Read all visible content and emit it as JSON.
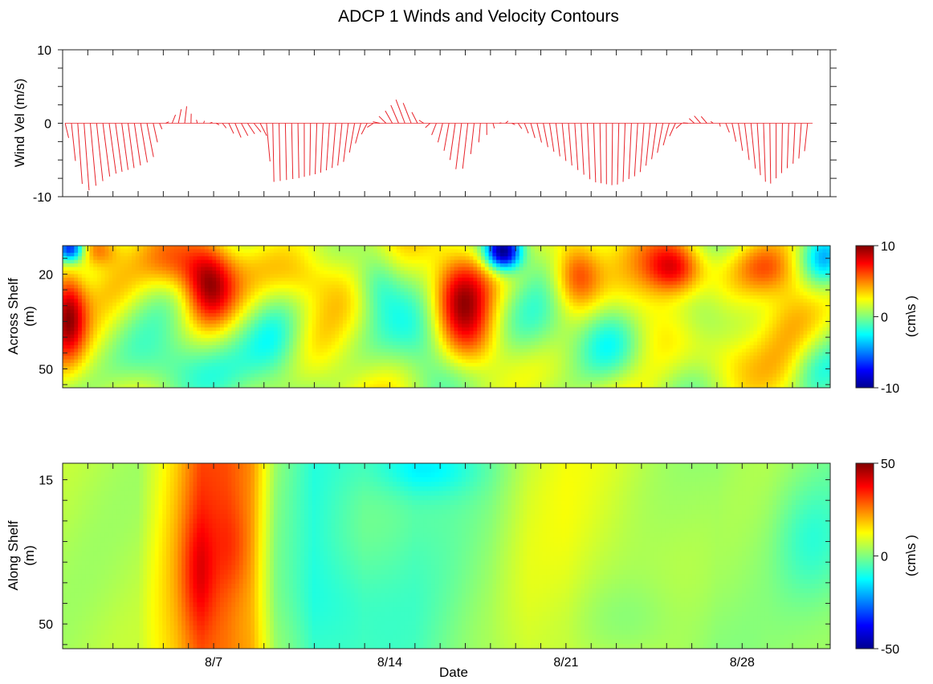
{
  "title": "ADCP 1 Winds  and Velocity Contours",
  "colors": {
    "wind_stick": "#e8232a",
    "colormap": [
      "#00008f",
      "#0000ff",
      "#0080ff",
      "#00ffff",
      "#80ff80",
      "#ffff00",
      "#ff8000",
      "#ff0000",
      "#800000"
    ]
  },
  "chart_data": [
    {
      "type": "line",
      "subtype": "wind-stick",
      "title": "",
      "ylabel": "Wind Vel (m/s)",
      "xlabel": "",
      "ylim": [
        -10,
        10
      ],
      "yticks": [
        10,
        0,
        -10
      ],
      "x_range_days": [
        1,
        31.5
      ],
      "stick_interval_days": 0.25,
      "wind_keypoints": {
        "day": [
          1.1,
          1.7,
          2.7,
          3.7,
          4.3,
          4.8,
          5.3,
          5.8,
          6.3,
          6.8,
          7.3,
          7.8,
          8.3,
          8.8,
          9.3,
          10.3,
          11.3,
          12.3,
          13.2,
          13.7,
          14.2,
          14.7,
          15.2,
          16.2,
          17.0,
          17.5,
          18.0,
          18.5,
          19.0,
          20.0,
          21.0,
          22.0,
          23.0,
          24.0,
          25.0,
          25.5,
          26.0,
          26.5,
          27.3,
          28.3,
          29.0,
          29.7,
          30.3,
          30.8
        ],
        "v": [
          -2,
          -9.5,
          -7,
          -6,
          -5,
          -1,
          1,
          2.5,
          0.5,
          0.2,
          -0.5,
          -2,
          -1.5,
          -1,
          -8,
          -7.5,
          -6.8,
          -5.5,
          -1,
          0.5,
          2,
          3.5,
          1,
          -3,
          -7,
          -3,
          -1,
          0.5,
          -0.5,
          -3,
          -5.5,
          -8,
          -8.5,
          -7,
          -3.5,
          -1,
          0.5,
          1.2,
          -1,
          -6,
          -8.5,
          -6.5,
          -5,
          -3
        ],
        "u": [
          0.3,
          0.4,
          0.6,
          0.5,
          0.6,
          0.2,
          0.3,
          0.2,
          -0.1,
          0.2,
          0.3,
          0.5,
          0.6,
          0.6,
          0.1,
          0.1,
          -0.2,
          -0.4,
          -0.5,
          -0.6,
          -0.6,
          -0.8,
          -0.4,
          -0.4,
          -0.5,
          -0.2,
          0.1,
          0.2,
          0.3,
          0.4,
          0.3,
          0.2,
          -0.1,
          -0.3,
          -0.5,
          -0.5,
          -0.4,
          -0.6,
          0.3,
          0.4,
          0.1,
          -0.1,
          -0.2,
          -0.3
        ]
      }
    },
    {
      "type": "heatmap",
      "title": "",
      "ylabel": "Across Shelf",
      "ylabel2": "(m)",
      "yticks": [
        20,
        50
      ],
      "ylim": [
        56,
        11
      ],
      "colorbar_label": "(cm\\s )",
      "colorbar_ticks": [
        10,
        0,
        -10
      ],
      "clim": [
        -10,
        10
      ],
      "blobs": [
        {
          "day": 1.2,
          "depth": 32,
          "amp": 7,
          "sd": 0.5,
          "sz": 10
        },
        {
          "day": 2.3,
          "depth": 12,
          "amp": 5,
          "sd": 0.6,
          "sz": 4
        },
        {
          "day": 1.3,
          "depth": 12,
          "amp": -9,
          "sd": 0.4,
          "sz": 3
        },
        {
          "day": 3.0,
          "depth": 22,
          "amp": 2,
          "sd": 1.0,
          "sz": 8
        },
        {
          "day": 5.5,
          "depth": 17,
          "amp": 3,
          "sd": 0.9,
          "sz": 6
        },
        {
          "day": 6.8,
          "depth": 23,
          "amp": 7,
          "sd": 0.7,
          "sz": 9
        },
        {
          "day": 9.5,
          "depth": 42,
          "amp": -4,
          "sd": 0.9,
          "sz": 10
        },
        {
          "day": 10.5,
          "depth": 20,
          "amp": 3,
          "sd": 1.0,
          "sz": 7
        },
        {
          "day": 12.5,
          "depth": 25,
          "amp": 2,
          "sd": 1.2,
          "sz": 10
        },
        {
          "day": 13.5,
          "depth": 22,
          "amp": -4,
          "sd": 0.7,
          "sz": 8
        },
        {
          "day": 15.5,
          "depth": 40,
          "amp": -3,
          "sd": 1.0,
          "sz": 10
        },
        {
          "day": 16.8,
          "depth": 27,
          "amp": 6,
          "sd": 0.8,
          "sz": 10
        },
        {
          "day": 17.2,
          "depth": 42,
          "amp": 4,
          "sd": 0.9,
          "sz": 8
        },
        {
          "day": 18.5,
          "depth": 13,
          "amp": -12,
          "sd": 0.5,
          "sz": 4
        },
        {
          "day": 19.8,
          "depth": 38,
          "amp": -3,
          "sd": 1.2,
          "sz": 10
        },
        {
          "day": 21.4,
          "depth": 20,
          "amp": 6,
          "sd": 0.7,
          "sz": 8
        },
        {
          "day": 22.8,
          "depth": 42,
          "amp": -3,
          "sd": 1.0,
          "sz": 9
        },
        {
          "day": 24.0,
          "depth": 35,
          "amp": 3,
          "sd": 1.0,
          "sz": 10
        },
        {
          "day": 25.3,
          "depth": 18,
          "amp": 6.5,
          "sd": 0.8,
          "sz": 6
        },
        {
          "day": 26.5,
          "depth": 32,
          "amp": -3,
          "sd": 0.9,
          "sz": 8
        },
        {
          "day": 27.3,
          "depth": 48,
          "amp": 2,
          "sd": 1.0,
          "sz": 7
        },
        {
          "day": 29.0,
          "depth": 18,
          "amp": 4,
          "sd": 0.9,
          "sz": 6
        },
        {
          "day": 30.0,
          "depth": 30,
          "amp": 3,
          "sd": 1.0,
          "sz": 10
        },
        {
          "day": 31.3,
          "depth": 15,
          "amp": -5,
          "sd": 0.6,
          "sz": 6
        },
        {
          "day": 31.0,
          "depth": 50,
          "amp": -3,
          "sd": 0.8,
          "sz": 8
        },
        {
          "day": 5.0,
          "depth": 50,
          "amp": -3,
          "sd": 1.5,
          "sz": 8
        }
      ]
    },
    {
      "type": "heatmap",
      "title": "",
      "ylabel": "Along Shelf",
      "ylabel2": "(m)",
      "yticks": [
        15,
        50
      ],
      "ylim": [
        56,
        11
      ],
      "xlabel": "Date",
      "xticks": [
        {
          "label": "8/7",
          "day": 7
        },
        {
          "label": "8/14",
          "day": 14
        },
        {
          "label": "8/21",
          "day": 21
        },
        {
          "label": "8/28",
          "day": 28
        }
      ],
      "colorbar_label": "(cm\\s )",
      "colorbar_ticks": [
        50,
        0,
        -50
      ],
      "clim": [
        -50,
        50
      ],
      "base_by_day": {
        "day": [
          1,
          4,
          5.5,
          6.5,
          7.5,
          8.5,
          9.5,
          11,
          13,
          15,
          18,
          19.5,
          21,
          23,
          25,
          27,
          29,
          31.5
        ],
        "val": [
          5,
          5,
          18,
          30,
          28,
          22,
          2,
          -7,
          -3,
          -4,
          2,
          8,
          10,
          8,
          5,
          2,
          3,
          1
        ]
      },
      "blobs": [
        {
          "day": 6.4,
          "depth": 38,
          "amp": 10,
          "sd": 0.5,
          "sz": 10
        },
        {
          "day": 7.8,
          "depth": 32,
          "amp": 6,
          "sd": 0.5,
          "sz": 8
        },
        {
          "day": 15.5,
          "depth": 12,
          "amp": -12,
          "sd": 1.5,
          "sz": 5
        },
        {
          "day": 12.0,
          "depth": 45,
          "amp": -5,
          "sd": 1.5,
          "sz": 10
        },
        {
          "day": 23.5,
          "depth": 50,
          "amp": -6,
          "sd": 1.5,
          "sz": 8
        },
        {
          "day": 30.8,
          "depth": 30,
          "amp": -8,
          "sd": 1.0,
          "sz": 10
        }
      ]
    }
  ]
}
